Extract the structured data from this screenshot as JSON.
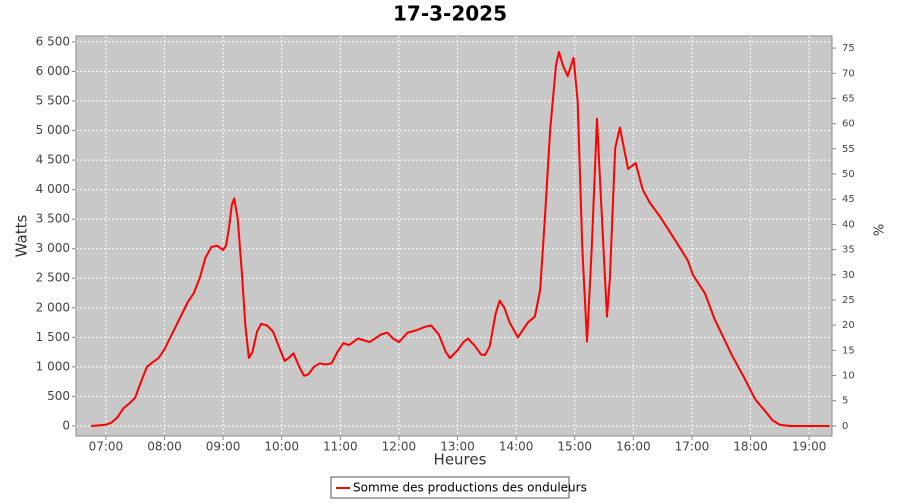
{
  "chart_data": {
    "type": "line",
    "title": "17-3-2025",
    "x_label": "Heures",
    "y_label": "Watts",
    "y2_label": "%",
    "xlim": [
      6.49,
      19.39
    ],
    "xticks": [
      {
        "value": 7,
        "label": "07:00"
      },
      {
        "value": 8,
        "label": "08:00"
      },
      {
        "value": 9,
        "label": "09:00"
      },
      {
        "value": 10,
        "label": "10:00"
      },
      {
        "value": 11,
        "label": "11:00"
      },
      {
        "value": 12,
        "label": "12:00"
      },
      {
        "value": 13,
        "label": "13:00"
      },
      {
        "value": 14,
        "label": "14:00"
      },
      {
        "value": 15,
        "label": "15:00"
      },
      {
        "value": 16,
        "label": "16:00"
      },
      {
        "value": 17,
        "label": "17:00"
      },
      {
        "value": 18,
        "label": "18:00"
      },
      {
        "value": 19,
        "label": "19:00"
      }
    ],
    "ylim": [
      -170,
      6600
    ],
    "yticks": [
      0,
      500,
      {
        "value": 1000,
        "label": "1 000"
      },
      {
        "value": 1500,
        "label": "1 500"
      },
      {
        "value": 2000,
        "label": "2 000"
      },
      {
        "value": 2500,
        "label": "2 500"
      },
      {
        "value": 3000,
        "label": "3 000"
      },
      {
        "value": 3500,
        "label": "3 500"
      },
      {
        "value": 4000,
        "label": "4 000"
      },
      {
        "value": 4500,
        "label": "4 500"
      },
      {
        "value": 5000,
        "label": "5 000"
      },
      {
        "value": 5500,
        "label": "5 500"
      },
      {
        "value": 6000,
        "label": "6 000"
      },
      {
        "value": 6500,
        "label": "6 500"
      }
    ],
    "y2lim": [
      -2,
      77.4
    ],
    "y2ticks": [
      0,
      5,
      10,
      15,
      20,
      25,
      30,
      35,
      40,
      45,
      50,
      55,
      60,
      65,
      70,
      75
    ],
    "grid": true,
    "x": [
      6.75,
      7.0,
      7.1,
      7.2,
      7.3,
      7.4,
      7.5,
      7.6,
      7.7,
      7.8,
      7.9,
      8.0,
      8.1,
      8.2,
      8.3,
      8.4,
      8.5,
      8.6,
      8.7,
      8.8,
      8.9,
      9.0,
      9.05,
      9.1,
      9.15,
      9.19,
      9.25,
      9.32,
      9.38,
      9.44,
      9.5,
      9.58,
      9.65,
      9.75,
      9.85,
      9.95,
      10.05,
      10.12,
      10.2,
      10.3,
      10.38,
      10.45,
      10.55,
      10.65,
      10.75,
      10.85,
      10.95,
      11.05,
      11.15,
      11.3,
      11.5,
      11.7,
      11.8,
      11.9,
      12.0,
      12.15,
      12.3,
      12.45,
      12.55,
      12.68,
      12.8,
      12.87,
      13.0,
      13.1,
      13.18,
      13.3,
      13.4,
      13.47,
      13.55,
      13.65,
      13.72,
      13.8,
      13.89,
      14.03,
      14.2,
      14.32,
      14.41,
      14.49,
      14.58,
      14.68,
      14.73,
      14.8,
      14.88,
      14.98,
      15.05,
      15.13,
      15.21,
      15.29,
      15.38,
      15.44,
      15.55,
      15.6,
      15.69,
      15.77,
      15.91,
      16.04,
      16.16,
      16.28,
      16.45,
      16.71,
      16.93,
      17.02,
      17.22,
      17.39,
      17.56,
      17.68,
      17.9,
      18.08,
      18.25,
      18.37,
      18.5,
      18.67,
      19.35
    ],
    "series": [
      {
        "name": "Somme des productions des onduleurs",
        "color": "#ff0000",
        "values": [
          0,
          20,
          60,
          150,
          300,
          380,
          480,
          750,
          1000,
          1080,
          1150,
          1300,
          1500,
          1700,
          1900,
          2100,
          2250,
          2500,
          2850,
          3030,
          3050,
          2980,
          3050,
          3350,
          3750,
          3850,
          3500,
          2600,
          1700,
          1150,
          1250,
          1600,
          1730,
          1700,
          1600,
          1350,
          1100,
          1150,
          1230,
          1000,
          850,
          870,
          1000,
          1060,
          1040,
          1060,
          1250,
          1400,
          1370,
          1480,
          1420,
          1550,
          1580,
          1480,
          1420,
          1580,
          1620,
          1680,
          1700,
          1550,
          1250,
          1150,
          1280,
          1420,
          1480,
          1350,
          1210,
          1200,
          1350,
          1900,
          2120,
          2000,
          1750,
          1500,
          1750,
          1850,
          2300,
          3500,
          5000,
          6100,
          6330,
          6100,
          5920,
          6230,
          5500,
          3000,
          1430,
          3000,
          5200,
          4000,
          1850,
          2500,
          4700,
          5050,
          4350,
          4450,
          4000,
          3780,
          3550,
          3150,
          2800,
          2550,
          2250,
          1800,
          1450,
          1200,
          800,
          450,
          250,
          100,
          20,
          0,
          0
        ]
      }
    ]
  }
}
